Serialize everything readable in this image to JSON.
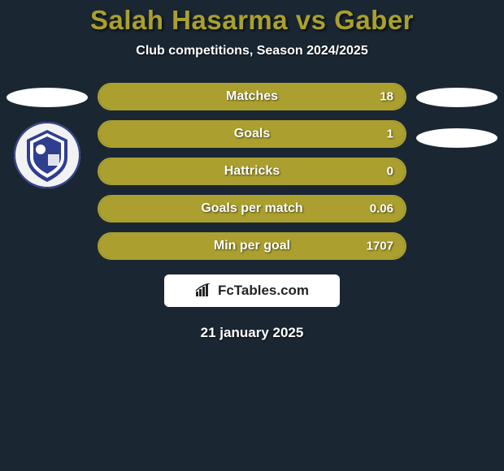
{
  "background_color": "#1a2733",
  "title": {
    "text": "Salah Hasarma vs Gaber",
    "color": "#aaa02c",
    "fontsize": 33
  },
  "subtitle": {
    "text": "Club competitions, Season 2024/2025",
    "color": "#ffffff",
    "fontsize": 16
  },
  "players": {
    "left": {
      "ellipse_color": "#ffffff",
      "has_logo": true,
      "logo_bg": "#f0f0f0",
      "logo_accent": "#2f3e8f"
    },
    "right": {
      "ellipse_color": "#ffffff",
      "ellipse_2_color": "#ffffff",
      "has_logo": false
    }
  },
  "stats": {
    "border_color": "#aba02f",
    "fill_color": "#aba02f",
    "track_color": "rgba(0,0,0,0)",
    "label_color": "#ffffff",
    "value_color": "#ffffff",
    "rows": [
      {
        "label": "Matches",
        "left": "",
        "right": "18",
        "left_pct": 0,
        "right_pct": 100
      },
      {
        "label": "Goals",
        "left": "",
        "right": "1",
        "left_pct": 0,
        "right_pct": 100
      },
      {
        "label": "Hattricks",
        "left": "",
        "right": "0",
        "left_pct": 0,
        "right_pct": 100
      },
      {
        "label": "Goals per match",
        "left": "",
        "right": "0.06",
        "left_pct": 0,
        "right_pct": 100
      },
      {
        "label": "Min per goal",
        "left": "",
        "right": "1707",
        "left_pct": 0,
        "right_pct": 100
      }
    ]
  },
  "brand": {
    "background": "#ffffff",
    "icon_color": "#242424",
    "text": "FcTables.com",
    "text_color": "#242424"
  },
  "date": {
    "text": "21 january 2025",
    "color": "#ffffff"
  }
}
